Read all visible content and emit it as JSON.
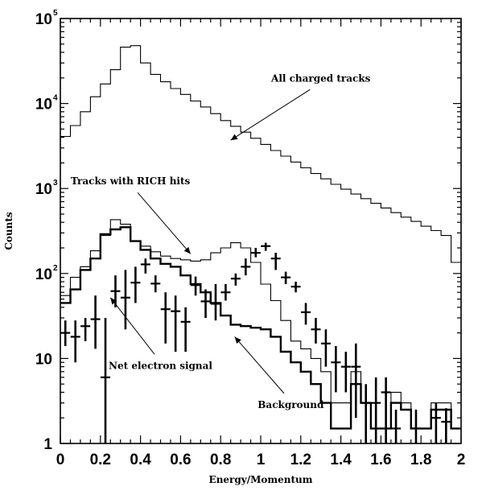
{
  "chart_data": {
    "type": "histogram",
    "xlabel": "Energy/Momentum",
    "ylabel": "Counts",
    "xlim": [
      0,
      2
    ],
    "ylim": [
      1,
      100000
    ],
    "yscale": "log",
    "x_ticks": [
      "0",
      "0.2",
      "0.4",
      "0.6",
      "0.8",
      "1",
      "1.2",
      "1.4",
      "1.6",
      "1.8",
      "2"
    ],
    "y_ticks": [
      {
        "base": "1",
        "exp": ""
      },
      {
        "base": "10",
        "exp": ""
      },
      {
        "base": "10",
        "exp": "2"
      },
      {
        "base": "10",
        "exp": "3"
      },
      {
        "base": "10",
        "exp": "4"
      },
      {
        "base": "10",
        "exp": "5"
      }
    ],
    "bin_width": 0.05,
    "bin_edges_start": 0,
    "series": [
      {
        "name": "All charged tracks",
        "style": "step-thin",
        "values": [
          4100,
          5500,
          8000,
          12000,
          17000,
          25000,
          46000,
          48000,
          30000,
          22000,
          18000,
          15000,
          12800,
          10700,
          9100,
          7600,
          6300,
          5400,
          4600,
          3900,
          3300,
          2800,
          2400,
          2050,
          1750,
          1500,
          1300,
          1120,
          980,
          860,
          760,
          670,
          590,
          520,
          460,
          410,
          360,
          320,
          280,
          135
        ]
      },
      {
        "name": "Tracks with RICH hits",
        "style": "step-thin",
        "values": [
          55,
          90,
          120,
          185,
          280,
          430,
          380,
          240,
          210,
          180,
          160,
          150,
          145,
          140,
          145,
          175,
          200,
          230,
          200,
          135,
          75,
          48,
          28,
          16,
          13,
          10,
          7,
          3,
          3,
          7,
          3,
          1.5,
          1.5,
          4,
          3,
          1.5,
          1.5,
          3,
          3,
          1.5
        ]
      },
      {
        "name": "Background",
        "style": "step-thick",
        "values": [
          45,
          65,
          110,
          150,
          290,
          330,
          350,
          240,
          190,
          150,
          130,
          120,
          95,
          75,
          60,
          45,
          32,
          25,
          24,
          23,
          22,
          18,
          12,
          9,
          7,
          5,
          3,
          1.5,
          1.5,
          5,
          3,
          1.5,
          1.5,
          3,
          2.5,
          1.5,
          1.5,
          2.5,
          2.5,
          1.5
        ]
      },
      {
        "name": "Net electron signal",
        "style": "points",
        "points": [
          {
            "x": 0.025,
            "y": 20,
            "lo": 14,
            "hi": 28
          },
          {
            "x": 0.075,
            "y": 18,
            "lo": 9,
            "hi": 28
          },
          {
            "x": 0.125,
            "y": 24,
            "lo": 16,
            "hi": 30
          },
          {
            "x": 0.175,
            "y": 29,
            "lo": 13,
            "hi": 55
          },
          {
            "x": 0.225,
            "y": 6,
            "lo": 1,
            "hi": 30
          },
          {
            "x": 0.275,
            "y": 62,
            "lo": 40,
            "hi": 95
          },
          {
            "x": 0.325,
            "y": 52,
            "lo": 22,
            "hi": 110
          },
          {
            "x": 0.375,
            "y": 78,
            "lo": 45,
            "hi": 120
          },
          {
            "x": 0.425,
            "y": 128,
            "lo": 100,
            "hi": 150
          },
          {
            "x": 0.475,
            "y": 76,
            "lo": 60,
            "hi": 95
          },
          {
            "x": 0.525,
            "y": 38,
            "lo": 15,
            "hi": 60
          },
          {
            "x": 0.575,
            "y": 36,
            "lo": 12,
            "hi": 55
          },
          {
            "x": 0.625,
            "y": 27,
            "lo": 12,
            "hi": 40
          },
          {
            "x": 0.675,
            "y": 73,
            "lo": 55,
            "hi": 92
          },
          {
            "x": 0.725,
            "y": 47,
            "lo": 30,
            "hi": 65
          },
          {
            "x": 0.775,
            "y": 44,
            "lo": 28,
            "hi": 75
          },
          {
            "x": 0.825,
            "y": 60,
            "lo": 48,
            "hi": 75
          },
          {
            "x": 0.875,
            "y": 87,
            "lo": 72,
            "hi": 100
          },
          {
            "x": 0.925,
            "y": 120,
            "lo": 95,
            "hi": 150
          },
          {
            "x": 0.975,
            "y": 175,
            "lo": 155,
            "hi": 200
          },
          {
            "x": 1.025,
            "y": 210,
            "lo": 185,
            "hi": 230
          },
          {
            "x": 1.075,
            "y": 150,
            "lo": 110,
            "hi": 175
          },
          {
            "x": 1.125,
            "y": 90,
            "lo": 75,
            "hi": 105
          },
          {
            "x": 1.175,
            "y": 70,
            "lo": 60,
            "hi": 80
          },
          {
            "x": 1.225,
            "y": 35,
            "lo": 25,
            "hi": 45
          },
          {
            "x": 1.275,
            "y": 22,
            "lo": 15,
            "hi": 30
          },
          {
            "x": 1.325,
            "y": 15,
            "lo": 8,
            "hi": 22
          },
          {
            "x": 1.375,
            "y": 9,
            "lo": 4,
            "hi": 14
          },
          {
            "x": 1.425,
            "y": 8,
            "lo": 4,
            "hi": 12
          },
          {
            "x": 1.475,
            "y": 8,
            "lo": 2,
            "hi": 15
          },
          {
            "x": 1.525,
            "y": 3,
            "lo": 1,
            "hi": 5
          },
          {
            "x": 1.575,
            "y": 3,
            "lo": 1,
            "hi": 6
          },
          {
            "x": 1.625,
            "y": 4,
            "lo": 1,
            "hi": 6
          },
          {
            "x": 1.675,
            "y": 1.5,
            "lo": 1,
            "hi": 2.5
          },
          {
            "x": 1.775,
            "y": 1.5,
            "lo": 1,
            "hi": 2.5
          },
          {
            "x": 1.875,
            "y": 2,
            "lo": 1,
            "hi": 3
          },
          {
            "x": 1.925,
            "y": 1.8,
            "lo": 1,
            "hi": 2.6
          }
        ]
      }
    ],
    "annotations": [
      {
        "text": "All charged tracks",
        "tx": 1.3,
        "ty": 18000,
        "ax": 0.85,
        "ay": 3700
      },
      {
        "text": "Tracks with RICH hits",
        "tx": 0.35,
        "ty": 1120,
        "ax": 0.65,
        "ay": 170
      },
      {
        "text": "Net electron signal",
        "tx": 0.5,
        "ty": 7.5,
        "ax": 0.25,
        "ay": 52
      },
      {
        "text": "Background",
        "tx": 1.15,
        "ty": 2.6,
        "ax": 0.87,
        "ay": 18
      }
    ],
    "grid": false,
    "legend": "none"
  }
}
